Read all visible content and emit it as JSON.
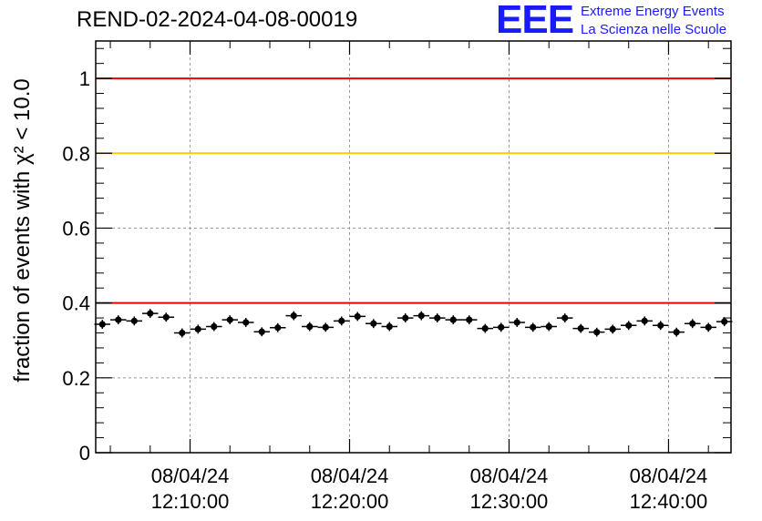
{
  "title": "REND-02-2024-04-08-00019",
  "logo": {
    "mark": "EEE",
    "line1": "Extreme Energy Events",
    "line2": "La Scienza nelle Scuole"
  },
  "chart_data": {
    "type": "scatter",
    "ylabel": "fraction of events with χ² < 10.0",
    "ylim": [
      0,
      1.1
    ],
    "y_ticks": [
      {
        "value": 0,
        "label": "0"
      },
      {
        "value": 0.2,
        "label": "0.2"
      },
      {
        "value": 0.4,
        "label": "0.4"
      },
      {
        "value": 0.6,
        "label": "0.6"
      },
      {
        "value": 0.8,
        "label": "0.8"
      },
      {
        "value": 1,
        "label": "1"
      }
    ],
    "xlim": [
      "12:04:05",
      "12:43:55"
    ],
    "x_ticks": [
      {
        "value": "12:10:00",
        "date": "08/04/24",
        "time": "12:10:00"
      },
      {
        "value": "12:20:00",
        "date": "08/04/24",
        "time": "12:20:00"
      },
      {
        "value": "12:30:00",
        "date": "08/04/24",
        "time": "12:30:00"
      },
      {
        "value": "12:40:00",
        "date": "08/04/24",
        "time": "12:40:00"
      }
    ],
    "grid": true,
    "reference_lines": [
      {
        "y": 1.0,
        "color": "#ee0000"
      },
      {
        "y": 0.8,
        "color": "#ffcc00"
      },
      {
        "y": 0.4,
        "color": "#ee0000"
      }
    ],
    "points": {
      "x": [
        "12:04:30",
        "12:05:30",
        "12:06:30",
        "12:07:30",
        "12:08:30",
        "12:09:30",
        "12:10:30",
        "12:11:30",
        "12:12:30",
        "12:13:30",
        "12:14:30",
        "12:15:30",
        "12:16:30",
        "12:17:30",
        "12:18:30",
        "12:19:30",
        "12:20:30",
        "12:21:30",
        "12:22:30",
        "12:23:30",
        "12:24:30",
        "12:25:30",
        "12:26:30",
        "12:27:30",
        "12:28:30",
        "12:29:30",
        "12:30:30",
        "12:31:30",
        "12:32:30",
        "12:33:30",
        "12:34:30",
        "12:35:30",
        "12:36:30",
        "12:37:30",
        "12:38:30",
        "12:39:30",
        "12:40:30",
        "12:41:30",
        "12:42:30",
        "12:43:30"
      ],
      "y": [
        0.343,
        0.355,
        0.352,
        0.372,
        0.362,
        0.32,
        0.33,
        0.337,
        0.355,
        0.348,
        0.323,
        0.334,
        0.366,
        0.337,
        0.335,
        0.352,
        0.364,
        0.345,
        0.337,
        0.36,
        0.366,
        0.36,
        0.355,
        0.355,
        0.332,
        0.335,
        0.348,
        0.335,
        0.337,
        0.36,
        0.332,
        0.322,
        0.33,
        0.34,
        0.352,
        0.34,
        0.322,
        0.345,
        0.335,
        0.35
      ],
      "y_error": 0.012,
      "color": "#000000"
    }
  }
}
